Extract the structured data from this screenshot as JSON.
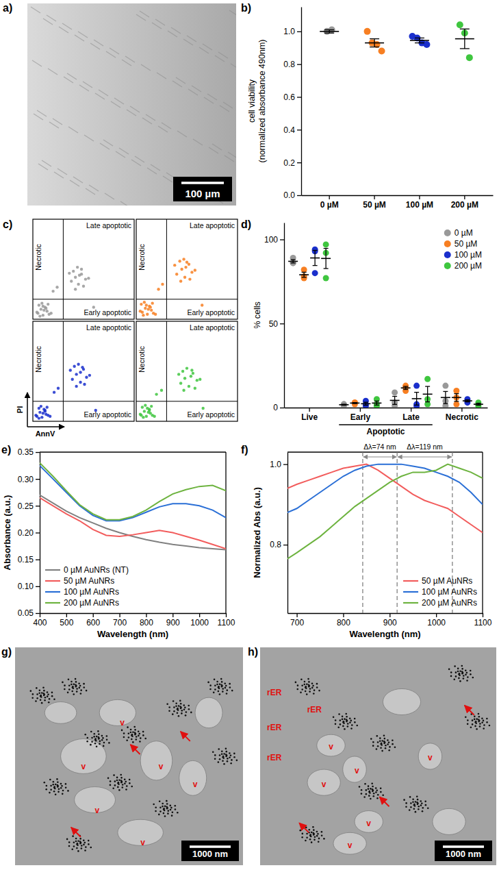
{
  "chart_data": [
    {
      "label": "b)",
      "type": "strip",
      "ylabel": [
        "cell viability",
        "(normalized absorbance 490nm)"
      ],
      "categories": [
        "0 µM",
        "50 µM",
        "100 µM",
        "200 µM"
      ],
      "values": [
        [
          1.0,
          1.01
        ],
        [
          1.0,
          0.93,
          0.92,
          0.88
        ],
        [
          0.97,
          0.96,
          0.93,
          0.92
        ],
        [
          1.04,
          0.99,
          0.84
        ]
      ],
      "mean": [
        1.0,
        0.93,
        0.945,
        0.955
      ],
      "error": [
        0.01,
        0.025,
        0.015,
        0.06
      ],
      "colors": [
        "#999999",
        "#f77f22",
        "#1a2fcc",
        "#3fc63f"
      ],
      "ylim": [
        0,
        1.15
      ],
      "yticks": [
        {
          "value": 0,
          "label": "0.0"
        },
        0.2,
        0.4,
        0.6,
        0.8,
        {
          "value": 1,
          "label": "1.0"
        }
      ]
    },
    {
      "label": "c)",
      "type": "scatter",
      "xlabel": "AnnV",
      "ylabel": "PI",
      "xlim": [
        0,
        100
      ],
      "ylim": [
        0,
        100
      ],
      "tick_labels": false,
      "gate_x": 30,
      "gate_y": 20,
      "quadrant_labels": {
        "upper_left": "Necrotic",
        "upper_right": "Late apoptotic",
        "lower_right": "Early apoptotic"
      },
      "series": [
        {
          "color": "#999999",
          "x": [
            5,
            8,
            10,
            12,
            6,
            14,
            9,
            16,
            11,
            7,
            13,
            4,
            18,
            10,
            15,
            38,
            42,
            45,
            48,
            40,
            52,
            44,
            50,
            46,
            36,
            55,
            42,
            48,
            20,
            24,
            60
          ],
          "y": [
            6,
            10,
            4,
            12,
            14,
            8,
            16,
            5,
            9,
            3,
            11,
            7,
            6,
            13,
            15,
            38,
            42,
            35,
            45,
            48,
            40,
            52,
            33,
            44,
            46,
            41,
            30,
            50,
            28,
            32,
            12
          ]
        },
        {
          "color": "#f77f22",
          "x": [
            6,
            9,
            11,
            13,
            5,
            15,
            8,
            17,
            12,
            7,
            14,
            4,
            19,
            10,
            16,
            40,
            45,
            48,
            52,
            43,
            55,
            47,
            53,
            49,
            38,
            58,
            44,
            50,
            22,
            26,
            65
          ],
          "y": [
            7,
            11,
            5,
            13,
            15,
            9,
            17,
            6,
            10,
            4,
            12,
            8,
            5,
            14,
            16,
            45,
            50,
            42,
            55,
            58,
            47,
            60,
            40,
            52,
            54,
            49,
            38,
            57,
            30,
            35,
            14
          ]
        },
        {
          "color": "#1a2fcc",
          "x": [
            4,
            7,
            9,
            12,
            6,
            13,
            8,
            15,
            10,
            6,
            12,
            3,
            17,
            11,
            14,
            39,
            43,
            47,
            50,
            41,
            53,
            45,
            51,
            47,
            37,
            56,
            43,
            49,
            21,
            25,
            62
          ],
          "y": [
            5,
            9,
            4,
            11,
            13,
            7,
            15,
            6,
            8,
            3,
            10,
            6,
            5,
            12,
            14,
            42,
            47,
            39,
            52,
            55,
            44,
            57,
            37,
            49,
            51,
            46,
            35,
            54,
            29,
            33,
            11
          ]
        },
        {
          "color": "#3fc63f",
          "x": [
            5,
            8,
            10,
            13,
            6,
            14,
            9,
            16,
            12,
            7,
            13,
            4,
            18,
            11,
            15,
            44,
            48,
            52,
            56,
            46,
            60,
            50,
            58,
            54,
            42,
            63,
            47,
            55,
            20,
            25,
            66
          ],
          "y": [
            6,
            10,
            5,
            12,
            14,
            8,
            16,
            6,
            9,
            4,
            11,
            7,
            5,
            13,
            15,
            38,
            43,
            35,
            48,
            50,
            41,
            53,
            33,
            45,
            47,
            42,
            31,
            51,
            27,
            31,
            13
          ]
        }
      ]
    },
    {
      "label": "d)",
      "type": "strip",
      "ylabel": "% cells",
      "categories": [
        "Live",
        "Early",
        "Late",
        "Necrotic"
      ],
      "groups": [
        {
          "label": "Apoptotic",
          "from": "Early",
          "to": "Late"
        }
      ],
      "ylim": [
        0,
        110
      ],
      "yticks": [
        0,
        50,
        100
      ],
      "legend": "top-right",
      "series": [
        {
          "name": "0 µM",
          "color": "#999999",
          "values": [
            [
              89,
              86,
              86
            ],
            [
              2,
              2,
              1
            ],
            [
              9,
              3,
              1
            ],
            [
              13,
              4,
              1
            ]
          ],
          "mean": [
            87,
            1.7,
            4.3,
            6
          ],
          "error": [
            1,
            0.3,
            2.4,
            3.6
          ]
        },
        {
          "name": "50 µM",
          "color": "#f77f22",
          "values": [
            [
              82,
              78,
              77
            ],
            [
              3,
              3,
              2
            ],
            [
              13,
              12,
              10
            ],
            [
              10,
              6,
              2
            ]
          ],
          "mean": [
            79,
            2.7,
            11.7,
            6
          ],
          "error": [
            1.5,
            0.3,
            0.9,
            2.3
          ]
        },
        {
          "name": "100 µM",
          "color": "#1a2fcc",
          "values": [
            [
              94,
              93,
              80
            ],
            [
              4,
              2,
              1
            ],
            [
              13,
              2,
              1
            ],
            [
              5,
              4,
              3
            ]
          ],
          "mean": [
            89,
            2.3,
            5.3,
            4
          ],
          "error": [
            4.5,
            0.9,
            3.8,
            0.6
          ]
        },
        {
          "name": "200 µM",
          "color": "#3fc63f",
          "values": [
            [
              97,
              92,
              77
            ],
            [
              5,
              2,
              1
            ],
            [
              17,
              5,
              2
            ],
            [
              3,
              2,
              1
            ]
          ],
          "mean": [
            88.7,
            2.7,
            8,
            2
          ],
          "error": [
            6,
            1.2,
            4.6,
            0.6
          ]
        }
      ]
    },
    {
      "label": "e)",
      "type": "line",
      "xlabel": "Wavelength (nm)",
      "ylabel": "Absorbance (a.u.)",
      "x": [
        400,
        450,
        500,
        550,
        600,
        650,
        700,
        750,
        800,
        850,
        900,
        950,
        1000,
        1050,
        1100
      ],
      "xlim": [
        400,
        1100
      ],
      "xticks": [
        400,
        500,
        600,
        700,
        800,
        900,
        1000,
        1100
      ],
      "ylim": [
        0.05,
        0.35
      ],
      "yticks": [
        0.05,
        {
          "value": 0.1,
          "label": "0.10"
        },
        0.15,
        {
          "value": 0.2,
          "label": "0.20"
        },
        0.25,
        {
          "value": 0.3,
          "label": "0.30"
        },
        0.35
      ],
      "legend": "bottom-left",
      "series": [
        {
          "name": "0 µM AuNRs (NT)",
          "color": "#808080",
          "values": [
            0.27,
            0.255,
            0.24,
            0.228,
            0.218,
            0.208,
            0.2,
            0.193,
            0.187,
            0.182,
            0.178,
            0.175,
            0.172,
            0.17,
            0.168
          ]
        },
        {
          "name": "50 µM AuNRs",
          "color": "#f25c5c",
          "values": [
            0.265,
            0.25,
            0.235,
            0.222,
            0.206,
            0.195,
            0.193,
            0.196,
            0.2,
            0.204,
            0.2,
            0.193,
            0.186,
            0.178,
            0.17
          ]
        },
        {
          "name": "100 µM AuNRs",
          "color": "#2a6fd6",
          "values": [
            0.325,
            0.3,
            0.275,
            0.25,
            0.232,
            0.222,
            0.222,
            0.228,
            0.238,
            0.248,
            0.254,
            0.254,
            0.25,
            0.242,
            0.228
          ]
        },
        {
          "name": "200 µM AuNRs",
          "color": "#6db33f",
          "values": [
            0.33,
            0.305,
            0.278,
            0.252,
            0.235,
            0.224,
            0.224,
            0.23,
            0.242,
            0.258,
            0.272,
            0.28,
            0.286,
            0.288,
            0.278
          ]
        }
      ]
    },
    {
      "label": "f)",
      "type": "line",
      "xlabel": "Wavelength (nm)",
      "ylabel": "Normalized Abs (a.u.)",
      "x": [
        680,
        700,
        725,
        750,
        775,
        800,
        825,
        850,
        875,
        900,
        925,
        950,
        975,
        1000,
        1025,
        1050,
        1075,
        1100
      ],
      "xlim": [
        680,
        1100
      ],
      "xticks": [
        700,
        800,
        900,
        1000,
        1100
      ],
      "ylim": [
        0.63,
        1.03
      ],
      "yticks": [
        0.8,
        {
          "value": 1,
          "label": "1.0"
        }
      ],
      "legend": "bottom-right",
      "vlines": [
        842,
        916,
        1035
      ],
      "annotations": [
        {
          "text": "Δλ=74 nm",
          "x1": 842,
          "x2": 916
        },
        {
          "text": "Δλ=119 nm",
          "x1": 916,
          "x2": 1035
        }
      ],
      "series": [
        {
          "name": "50 µM AuNRs",
          "color": "#f25c5c",
          "values": [
            0.94,
            0.95,
            0.96,
            0.97,
            0.98,
            0.99,
            0.995,
            1.0,
            0.985,
            0.965,
            0.945,
            0.925,
            0.91,
            0.9,
            0.89,
            0.87,
            0.85,
            0.83
          ]
        },
        {
          "name": "100 µM AuNRs",
          "color": "#2a6fd6",
          "values": [
            0.88,
            0.89,
            0.91,
            0.93,
            0.95,
            0.97,
            0.985,
            0.995,
            1.0,
            1.0,
            1.0,
            0.995,
            0.99,
            0.98,
            0.97,
            0.955,
            0.93,
            0.9
          ]
        },
        {
          "name": "200 µM AuNRs",
          "color": "#6db33f",
          "values": [
            0.765,
            0.78,
            0.8,
            0.82,
            0.845,
            0.87,
            0.895,
            0.915,
            0.935,
            0.955,
            0.97,
            0.98,
            0.98,
            0.985,
            1.0,
            0.99,
            0.98,
            0.965
          ]
        }
      ]
    }
  ],
  "images": [
    {
      "label": "a)",
      "scale_bar": "100 µm"
    },
    {
      "label": "g)",
      "scale_bar": "1000 nm",
      "labels": [
        "v",
        "v",
        "v",
        "v",
        "v",
        "v"
      ]
    },
    {
      "label": "h)",
      "scale_bar": "1000 nm",
      "labels": [
        "rER",
        "rER",
        "rER",
        "rER",
        "v",
        "v",
        "v",
        "v",
        "v",
        "v"
      ]
    }
  ]
}
